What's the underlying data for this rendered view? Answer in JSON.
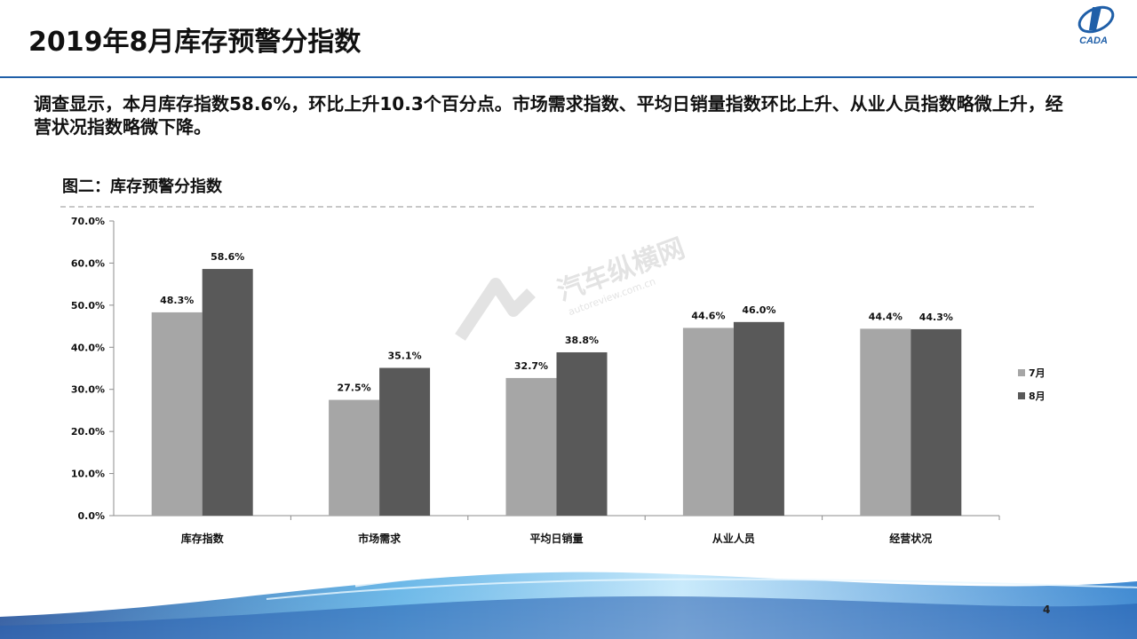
{
  "header": {
    "title": "2019年8月库存预警分指数",
    "logo_text": "CADA"
  },
  "summary": "调查显示，本月库存指数58.6%，环比上升10.3个百分点。市场需求指数、平均日销量指数环比上升、从业人员指数略微上升，经营状况指数略微下降。",
  "chart_heading": "图二：库存预警分指数",
  "watermark": {
    "text": "汽车纵横网",
    "sub": "autoreview.com.cn"
  },
  "page_number": "4",
  "colors": {
    "accent": "#1f5fa8",
    "series_jul": "#a6a6a6",
    "series_aug": "#595959"
  },
  "chart_data": {
    "type": "bar",
    "title": "",
    "xlabel": "",
    "ylabel": "",
    "ylim": [
      0,
      70
    ],
    "y_ticks": [
      0,
      10,
      20,
      30,
      40,
      50,
      60,
      70
    ],
    "y_tick_labels": [
      "0.0%",
      "10.0%",
      "20.0%",
      "30.0%",
      "40.0%",
      "50.0%",
      "60.0%",
      "70.0%"
    ],
    "categories": [
      "库存指数",
      "市场需求",
      "平均日销量",
      "从业人员",
      "经营状况"
    ],
    "series": [
      {
        "name": "7月",
        "values": [
          48.3,
          27.5,
          32.7,
          44.6,
          44.4
        ],
        "labels": [
          "48.3%",
          "27.5%",
          "32.7%",
          "44.6%",
          "44.4%"
        ]
      },
      {
        "name": "8月",
        "values": [
          58.6,
          35.1,
          38.8,
          46.0,
          44.3
        ],
        "labels": [
          "58.6%",
          "35.1%",
          "38.8%",
          "46.0%",
          "44.3%"
        ]
      }
    ],
    "grid": false,
    "legend": "right"
  }
}
